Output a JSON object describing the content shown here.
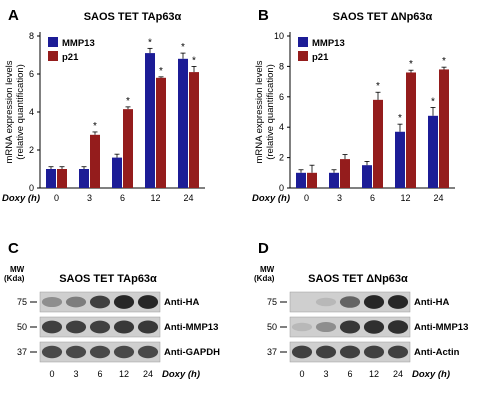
{
  "chart_data": [
    {
      "type": "bar",
      "panel_label": "A",
      "title": "SAOS TET TAp63α",
      "xlabel": "Doxy (h)",
      "ylabel": "mRNA expression levels (relative quantification)",
      "categories": [
        "0",
        "3",
        "6",
        "12",
        "24"
      ],
      "ylim": [
        0,
        8
      ],
      "yticks": [
        0,
        2,
        4,
        6,
        8
      ],
      "legend_position": "top-left",
      "series": [
        {
          "name": "MMP13",
          "color": "#1c1c96",
          "values": [
            1.0,
            1.0,
            1.6,
            7.1,
            6.8
          ],
          "errors": [
            0.12,
            0.12,
            0.18,
            0.25,
            0.3
          ],
          "asterisk": [
            false,
            false,
            false,
            true,
            true
          ]
        },
        {
          "name": "p21",
          "color": "#941c1c",
          "values": [
            1.0,
            2.8,
            4.15,
            5.8,
            6.1
          ],
          "errors": [
            0.12,
            0.15,
            0.12,
            0.05,
            0.3
          ],
          "asterisk": [
            false,
            true,
            true,
            true,
            true
          ]
        }
      ],
      "asterisk_symbol": "*"
    },
    {
      "type": "bar",
      "panel_label": "B",
      "title": "SAOS TET ΔNp63α",
      "xlabel": "Doxy (h)",
      "ylabel": "mRNA expression levels (relative quantification)",
      "categories": [
        "0",
        "3",
        "6",
        "12",
        "24"
      ],
      "ylim": [
        0,
        10
      ],
      "yticks": [
        0,
        2,
        4,
        6,
        8,
        10
      ],
      "legend_position": "top-left",
      "series": [
        {
          "name": "MMP13",
          "color": "#1c1c96",
          "values": [
            1.0,
            1.0,
            1.5,
            3.7,
            4.75
          ],
          "errors": [
            0.2,
            0.2,
            0.25,
            0.5,
            0.55
          ],
          "asterisk": [
            false,
            false,
            false,
            true,
            true
          ]
        },
        {
          "name": "p21",
          "color": "#941c1c",
          "values": [
            1.0,
            1.9,
            5.8,
            7.6,
            7.8
          ],
          "errors": [
            0.5,
            0.3,
            0.5,
            0.15,
            0.15
          ],
          "asterisk": [
            false,
            false,
            true,
            true,
            true
          ]
        }
      ],
      "asterisk_symbol": "*"
    }
  ],
  "blots": [
    {
      "panel_label": "C",
      "title": "SAOS TET TAp63α",
      "mw_label": "MW\n(Kda)",
      "mw_header": [
        "MW",
        "(Kda)"
      ],
      "lanes": [
        "0",
        "3",
        "6",
        "12",
        "24"
      ],
      "xlabel": "Doxy (h)",
      "strips": [
        {
          "antibody": "Anti-HA",
          "marker": "75",
          "intensities": [
            0.35,
            0.45,
            0.8,
            0.95,
            0.95
          ]
        },
        {
          "antibody": "Anti-MMP13",
          "marker": "50",
          "intensities": [
            0.8,
            0.8,
            0.8,
            0.85,
            0.85
          ]
        },
        {
          "antibody": "Anti-GAPDH",
          "marker": "37",
          "intensities": [
            0.75,
            0.75,
            0.75,
            0.75,
            0.75
          ]
        }
      ]
    },
    {
      "panel_label": "D",
      "title": "SAOS TET ΔNp63α",
      "mw_header": [
        "MW",
        "(Kda)"
      ],
      "lanes": [
        "0",
        "3",
        "6",
        "12",
        "24"
      ],
      "xlabel": "Doxy (h)",
      "strips": [
        {
          "antibody": "Anti-HA",
          "marker": "75",
          "intensities": [
            0.0,
            0.1,
            0.6,
            0.95,
            0.95
          ]
        },
        {
          "antibody": "Anti-MMP13",
          "marker": "50",
          "intensities": [
            0.1,
            0.35,
            0.85,
            0.9,
            0.9
          ]
        },
        {
          "antibody": "Anti-Actin",
          "marker": "37",
          "intensities": [
            0.8,
            0.8,
            0.8,
            0.8,
            0.8
          ]
        }
      ]
    }
  ]
}
